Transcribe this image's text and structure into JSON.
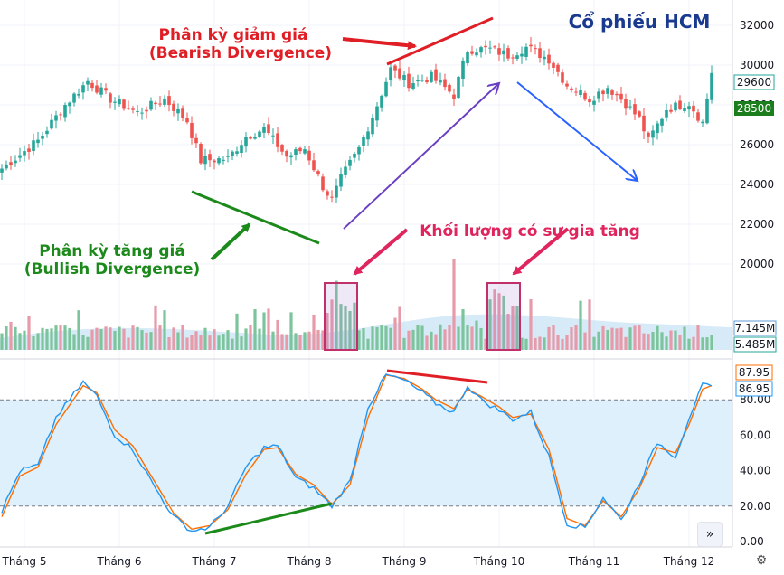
{
  "title": "Cổ phiếu HCM",
  "annotations": {
    "bearish_line1": "Phân kỳ giảm giá",
    "bearish_line2": "(Bearish Divergence)",
    "bullish_line1": "Phân kỳ tăng giá",
    "bullish_line2": "(Bullish Divergence)",
    "volume_note": "Khối lượng có sự gia tăng"
  },
  "badges": {
    "price_upper": "29600",
    "price_lower": "28500",
    "volume_upper": "7.145M",
    "volume_lower": "5.485M",
    "stoch_upper": "87.95",
    "stoch_lower": "86.95"
  },
  "nav_icon": "chevron-double-right-icon",
  "settings_icon": "gear-icon",
  "colors": {
    "up": "#26a69a",
    "down": "#ef5350",
    "k_line": "#2196f3",
    "d_line": "#ff6d00",
    "band": "#ddf0fb",
    "title": "#1a3a8f",
    "bearish": "#e01e26",
    "bullish": "#1b8a1b",
    "trend_purple": "#6a3fc2",
    "trend_blue": "#2962ff",
    "volume_note": "#e0245e"
  },
  "chart_data": [
    {
      "type": "candlestick",
      "panel": "price",
      "title": "Cổ phiếu HCM",
      "y_ticks": [
        32000,
        30000,
        28000,
        26000,
        24000,
        22000,
        20000
      ],
      "ylim": [
        18800,
        32800
      ],
      "x_tick_labels": [
        "Tháng 5",
        "Tháng 6",
        "Tháng 7",
        "Tháng 8",
        "Tháng 9",
        "Tháng 10",
        "Tháng 11",
        "Tháng 12"
      ],
      "close_anchors": [
        [
          0,
          24800
        ],
        [
          8,
          26200
        ],
        [
          14,
          28000
        ],
        [
          19,
          29200
        ],
        [
          24,
          28300
        ],
        [
          30,
          27600
        ],
        [
          36,
          28300
        ],
        [
          41,
          27200
        ],
        [
          44,
          25200
        ],
        [
          50,
          25300
        ],
        [
          54,
          26400
        ],
        [
          58,
          26800
        ],
        [
          63,
          25400
        ],
        [
          67,
          25800
        ],
        [
          71,
          23900
        ],
        [
          73,
          23200
        ],
        [
          75,
          24300
        ],
        [
          79,
          25800
        ],
        [
          83,
          28000
        ],
        [
          86,
          29800
        ],
        [
          90,
          29100
        ],
        [
          95,
          29400
        ],
        [
          100,
          28500
        ],
        [
          103,
          30800
        ],
        [
          108,
          30800
        ],
        [
          112,
          30500
        ],
        [
          116,
          30900
        ],
        [
          121,
          30300
        ],
        [
          125,
          29000
        ],
        [
          130,
          28300
        ],
        [
          134,
          28900
        ],
        [
          137,
          28300
        ],
        [
          141,
          27300
        ],
        [
          143,
          26200
        ],
        [
          147,
          27800
        ],
        [
          152,
          28100
        ],
        [
          155,
          27100
        ],
        [
          157,
          29600
        ]
      ],
      "last_price": 29600,
      "marker_price": 28500,
      "grid": true
    },
    {
      "type": "bar",
      "panel": "volume",
      "y_labels": [
        "7.145M",
        "5.485M"
      ],
      "highlight_ranges": [
        [
          72,
          78
        ],
        [
          108,
          114
        ]
      ],
      "note": "Khối lượng có sự gia tăng"
    },
    {
      "type": "line",
      "panel": "stochastic",
      "y_ticks": [
        0,
        20,
        40,
        60,
        80
      ],
      "ylim": [
        -2,
        100
      ],
      "overbought": 80,
      "oversold": 20,
      "k_anchors": [
        [
          0,
          17
        ],
        [
          4,
          40
        ],
        [
          8,
          43
        ],
        [
          12,
          70
        ],
        [
          18,
          90
        ],
        [
          21,
          82
        ],
        [
          25,
          60
        ],
        [
          29,
          52
        ],
        [
          34,
          30
        ],
        [
          38,
          14
        ],
        [
          42,
          6
        ],
        [
          46,
          8
        ],
        [
          50,
          20
        ],
        [
          54,
          42
        ],
        [
          58,
          53
        ],
        [
          61,
          54
        ],
        [
          65,
          36
        ],
        [
          69,
          30
        ],
        [
          73,
          20
        ],
        [
          77,
          34
        ],
        [
          81,
          76
        ],
        [
          85,
          94
        ],
        [
          89,
          91
        ],
        [
          93,
          84
        ],
        [
          96,
          78
        ],
        [
          100,
          73
        ],
        [
          103,
          88
        ],
        [
          106,
          80
        ],
        [
          110,
          74
        ],
        [
          113,
          69
        ],
        [
          117,
          73
        ],
        [
          121,
          48
        ],
        [
          125,
          10
        ],
        [
          129,
          8
        ],
        [
          133,
          25
        ],
        [
          137,
          12
        ],
        [
          141,
          33
        ],
        [
          145,
          56
        ],
        [
          149,
          48
        ],
        [
          152,
          70
        ],
        [
          155,
          88
        ],
        [
          157,
          87
        ]
      ],
      "d_anchors": [
        [
          0,
          14
        ],
        [
          4,
          37
        ],
        [
          8,
          42
        ],
        [
          12,
          66
        ],
        [
          18,
          88
        ],
        [
          21,
          84
        ],
        [
          25,
          63
        ],
        [
          29,
          54
        ],
        [
          34,
          33
        ],
        [
          38,
          16
        ],
        [
          42,
          7
        ],
        [
          46,
          9
        ],
        [
          50,
          18
        ],
        [
          54,
          38
        ],
        [
          58,
          52
        ],
        [
          61,
          53
        ],
        [
          65,
          38
        ],
        [
          69,
          32
        ],
        [
          73,
          21
        ],
        [
          77,
          32
        ],
        [
          81,
          70
        ],
        [
          85,
          94
        ],
        [
          89,
          92
        ],
        [
          93,
          86
        ],
        [
          96,
          80
        ],
        [
          100,
          75
        ],
        [
          103,
          86
        ],
        [
          106,
          82
        ],
        [
          110,
          76
        ],
        [
          113,
          70
        ],
        [
          117,
          72
        ],
        [
          121,
          52
        ],
        [
          125,
          13
        ],
        [
          129,
          9
        ],
        [
          133,
          23
        ],
        [
          137,
          14
        ],
        [
          141,
          30
        ],
        [
          145,
          53
        ],
        [
          149,
          50
        ],
        [
          152,
          66
        ],
        [
          155,
          86
        ],
        [
          157,
          88
        ]
      ],
      "k_last": 86.95,
      "d_last": 87.95
    }
  ]
}
